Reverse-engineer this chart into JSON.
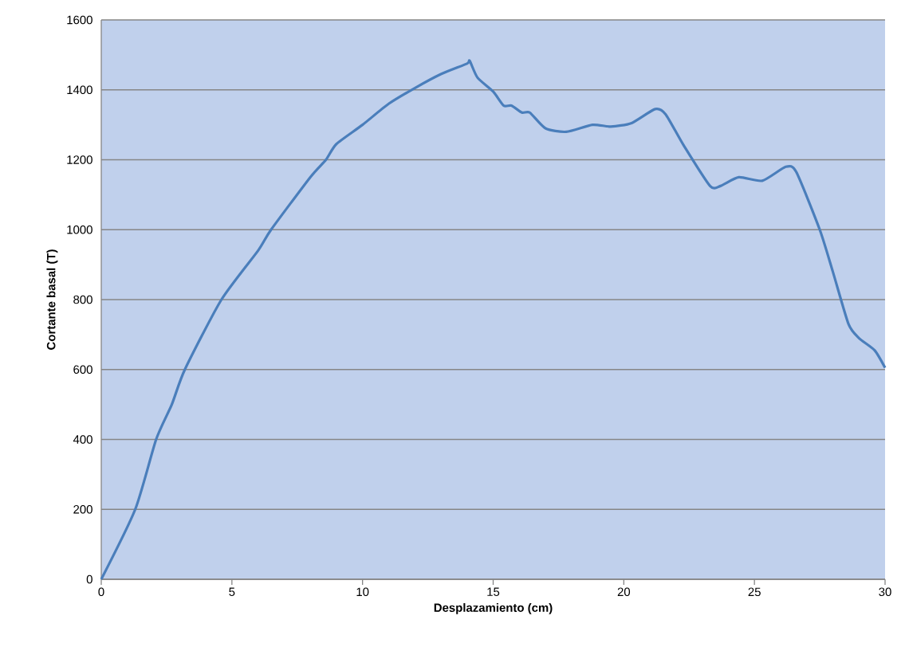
{
  "chart_data": {
    "type": "line",
    "xlabel": "Desplazamiento (cm)",
    "ylabel": "Cortante basal (T)",
    "x": [
      0,
      1.3,
      2.1,
      2.7,
      3.2,
      4.6,
      6,
      6.5,
      8,
      8.6,
      9,
      10,
      11,
      12,
      13,
      14,
      14.1,
      14.4,
      15,
      15.4,
      15.7,
      16.1,
      16.4,
      17,
      17.8,
      18.8,
      19.5,
      20.3,
      21.2,
      21.6,
      22.3,
      23.3,
      23.7,
      24.4,
      25.3,
      26.2,
      26.6,
      27.5,
      28,
      28.6,
      29,
      29.6,
      30
    ],
    "series": [
      {
        "color": "#4a7ebb",
        "values": [
          0,
          200,
          400,
          500,
          600,
          800,
          940,
          1000,
          1150,
          1200,
          1245,
          1300,
          1360,
          1405,
          1445,
          1475,
          1483,
          1435,
          1395,
          1355,
          1355,
          1335,
          1335,
          1290,
          1280,
          1300,
          1295,
          1305,
          1345,
          1330,
          1240,
          1125,
          1125,
          1150,
          1140,
          1180,
          1165,
          1000,
          880,
          730,
          690,
          655,
          605
        ]
      }
    ],
    "xlim": [
      0,
      30
    ],
    "ylim": [
      0,
      1600
    ],
    "xticks": [
      0,
      5,
      10,
      15,
      20,
      25,
      30
    ],
    "yticks": [
      0,
      200,
      400,
      600,
      800,
      1000,
      1200,
      1400,
      1600
    ],
    "grid": "y",
    "marker": "none",
    "line_style": "solid"
  }
}
